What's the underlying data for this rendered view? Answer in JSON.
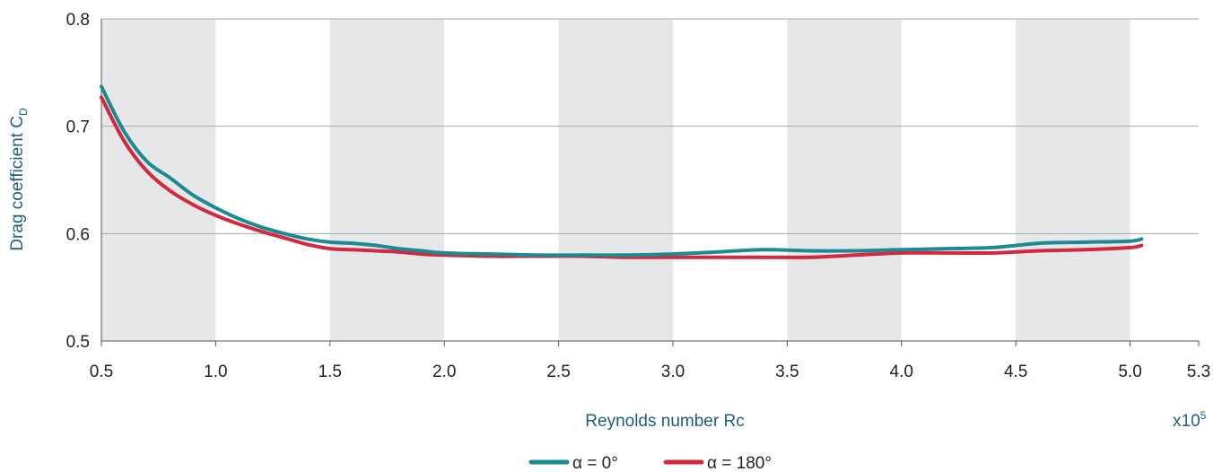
{
  "chart_data": {
    "type": "line",
    "xlabel": "Reynolds number Rc",
    "x_multiplier": "x10",
    "x_multiplier_exp": "5",
    "ylabel": "Drag coefficient C",
    "ylabel_sub": "D",
    "xlim": [
      0.5,
      5.3
    ],
    "ylim": [
      0.5,
      0.8
    ],
    "x_ticks": [
      "0.5",
      "1.0",
      "1.5",
      "2.0",
      "2.5",
      "3.0",
      "3.5",
      "4.0",
      "4.5",
      "5.0",
      "5.3"
    ],
    "x_tick_values": [
      0.5,
      1.0,
      1.5,
      2.0,
      2.5,
      3.0,
      3.5,
      4.0,
      4.5,
      5.0,
      5.3
    ],
    "y_ticks": [
      "0.5",
      "0.6",
      "0.7",
      "0.8"
    ],
    "y_tick_values": [
      0.5,
      0.6,
      0.7,
      0.8
    ],
    "shaded_bands": [
      [
        0.5,
        1.0
      ],
      [
        1.5,
        2.0
      ],
      [
        2.5,
        3.0
      ],
      [
        3.5,
        4.0
      ],
      [
        4.5,
        5.0
      ]
    ],
    "grid": "horizontal",
    "legend_position": "bottom-center",
    "colors": {
      "band": "#e6e7e9",
      "grid": "#a6a6a6",
      "axis": "#555555",
      "title": "#1d5f7a"
    },
    "series": [
      {
        "name": "α = 0°",
        "color": "#1b8a93",
        "x": [
          0.5,
          0.6,
          0.7,
          0.8,
          0.9,
          1.0,
          1.1,
          1.2,
          1.3,
          1.4,
          1.5,
          1.6,
          1.7,
          1.8,
          1.9,
          2.0,
          2.2,
          2.4,
          2.6,
          2.8,
          3.0,
          3.2,
          3.4,
          3.6,
          3.8,
          4.0,
          4.2,
          4.4,
          4.6,
          4.8,
          5.0,
          5.05
        ],
        "y": [
          0.737,
          0.695,
          0.667,
          0.652,
          0.636,
          0.624,
          0.614,
          0.606,
          0.6,
          0.595,
          0.592,
          0.591,
          0.589,
          0.586,
          0.584,
          0.582,
          0.581,
          0.58,
          0.58,
          0.58,
          0.581,
          0.583,
          0.585,
          0.584,
          0.584,
          0.585,
          0.586,
          0.587,
          0.591,
          0.592,
          0.593,
          0.595
        ]
      },
      {
        "name": "α = 180°",
        "color": "#d3283e",
        "x": [
          0.5,
          0.6,
          0.7,
          0.8,
          0.9,
          1.0,
          1.1,
          1.2,
          1.3,
          1.4,
          1.5,
          1.6,
          1.7,
          1.8,
          1.9,
          2.0,
          2.2,
          2.4,
          2.6,
          2.8,
          3.0,
          3.2,
          3.4,
          3.6,
          3.8,
          4.0,
          4.2,
          4.4,
          4.6,
          4.8,
          5.0,
          5.05
        ],
        "y": [
          0.727,
          0.686,
          0.658,
          0.64,
          0.627,
          0.617,
          0.609,
          0.602,
          0.596,
          0.59,
          0.586,
          0.585,
          0.584,
          0.583,
          0.581,
          0.58,
          0.579,
          0.579,
          0.579,
          0.578,
          0.578,
          0.578,
          0.578,
          0.578,
          0.58,
          0.582,
          0.582,
          0.582,
          0.584,
          0.585,
          0.587,
          0.589
        ]
      }
    ]
  }
}
